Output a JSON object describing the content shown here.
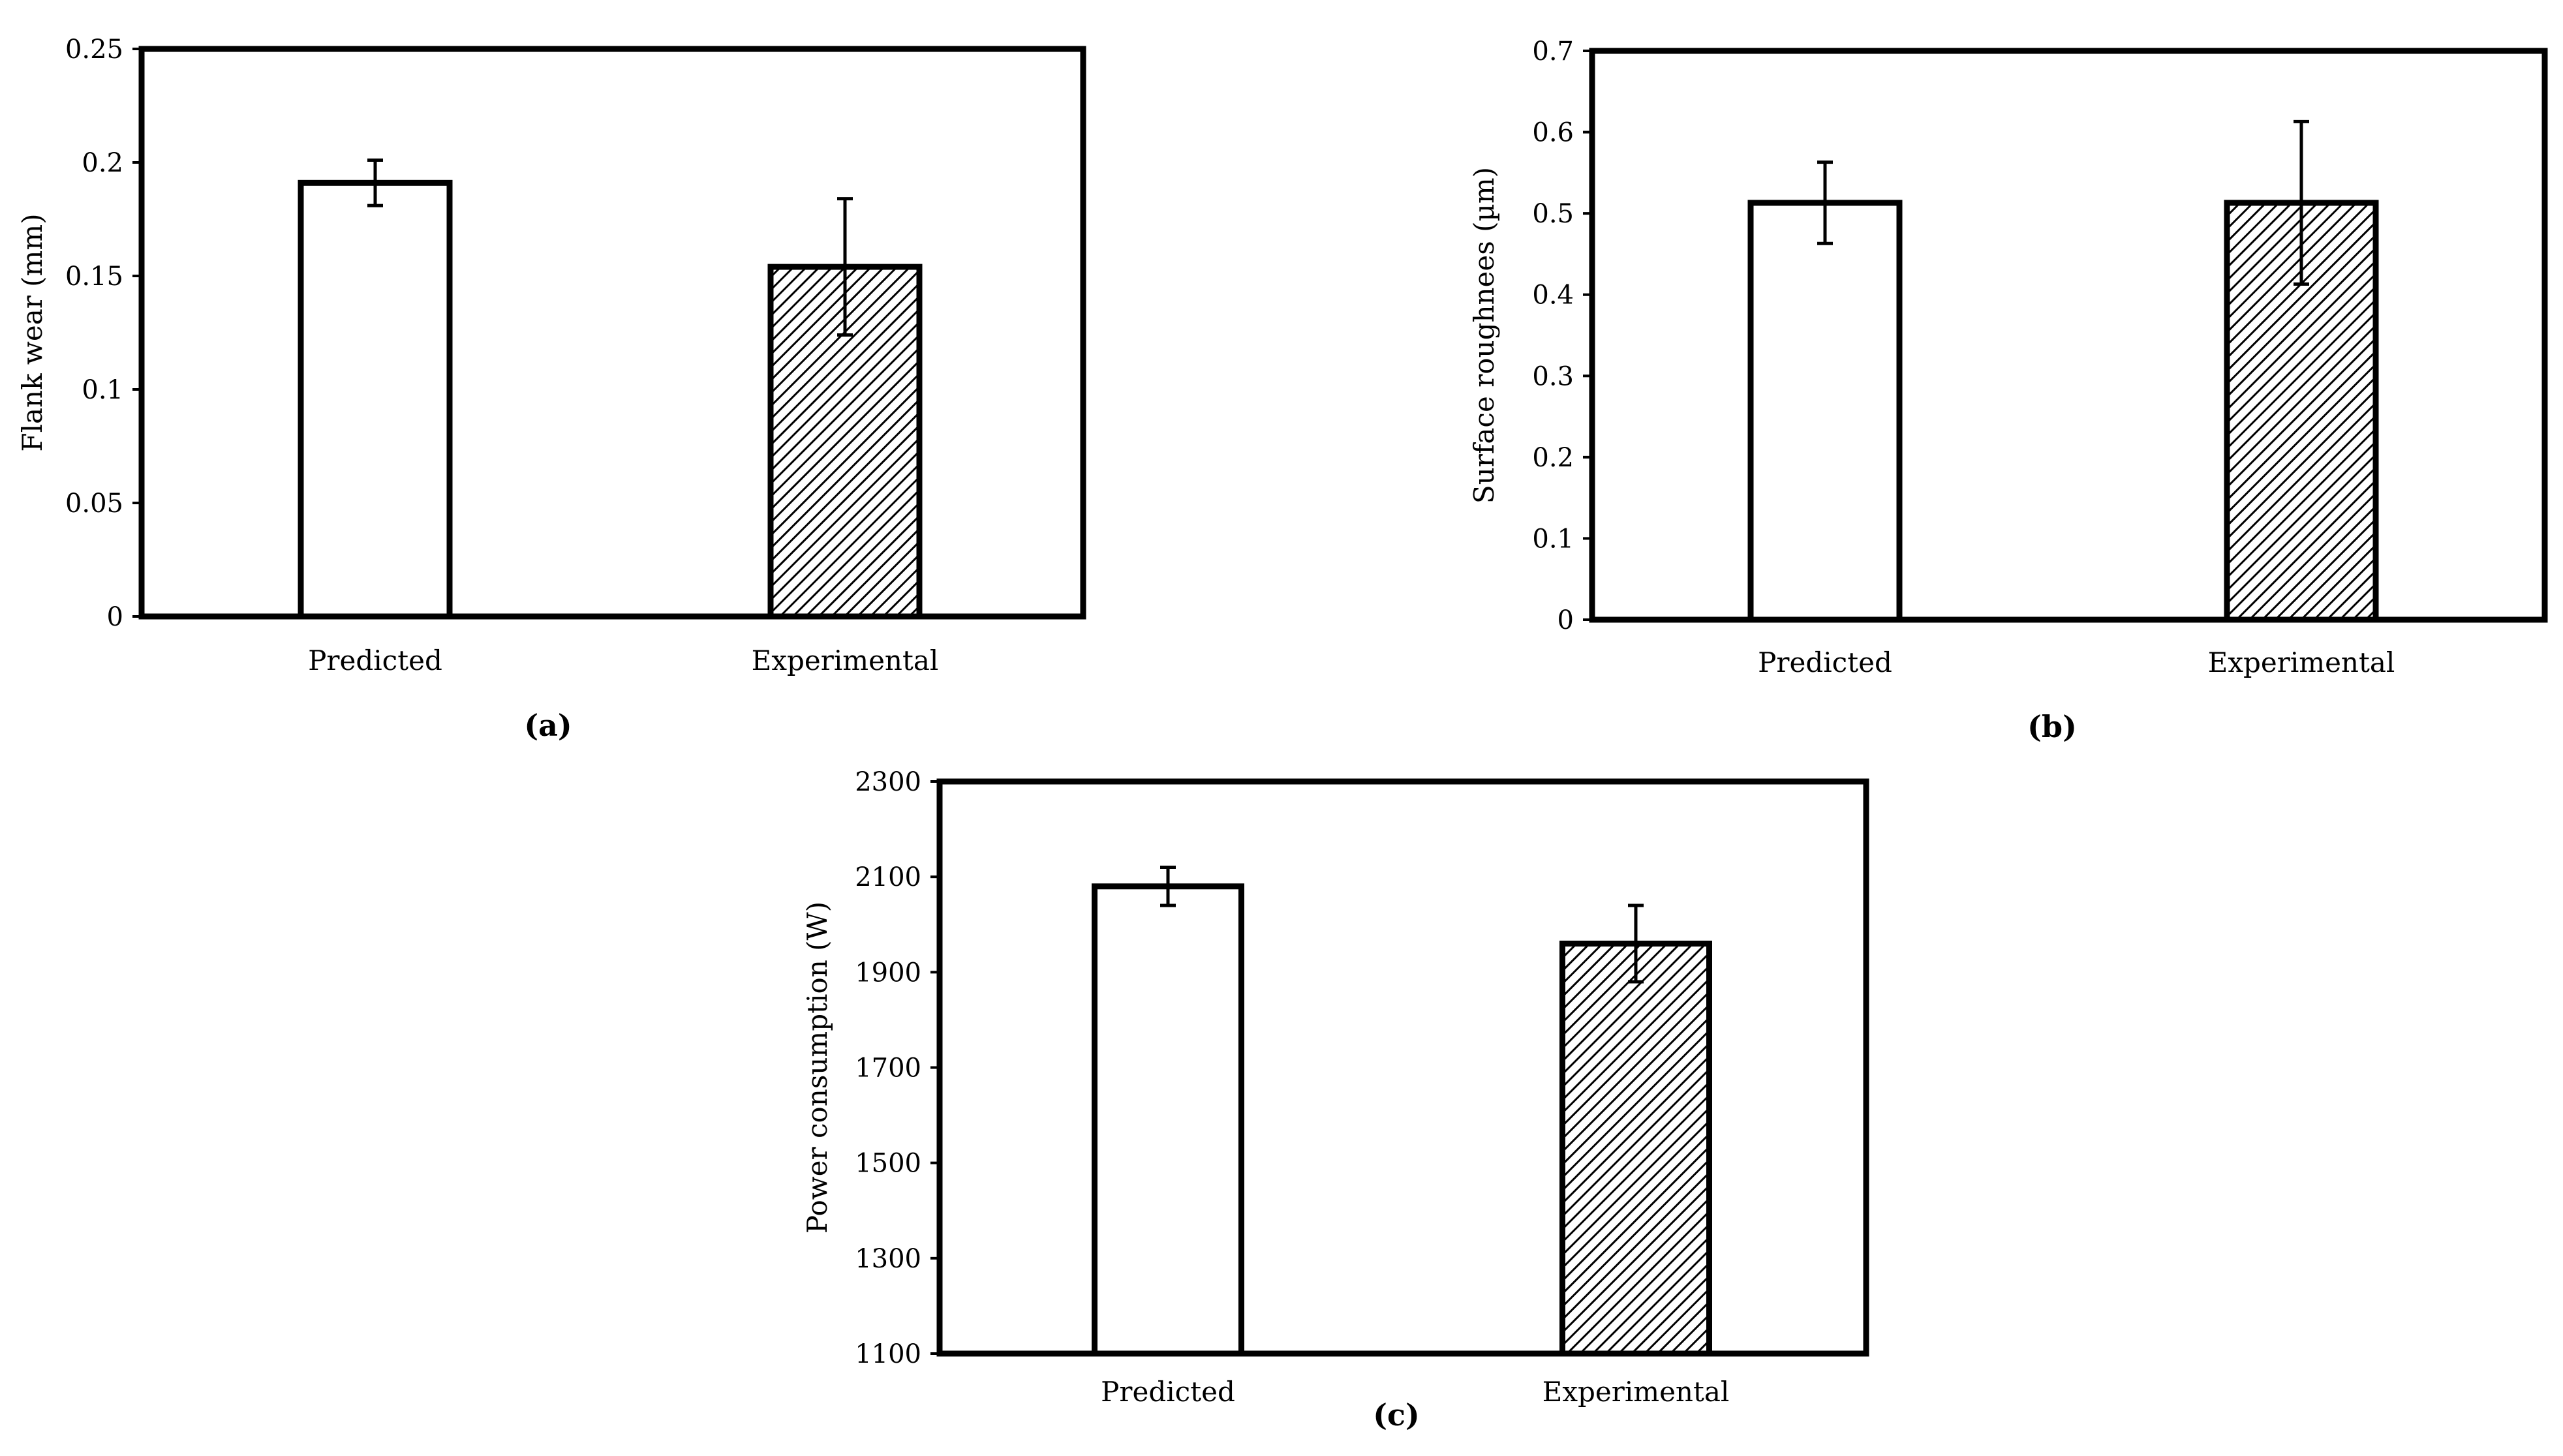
{
  "chart_data": [
    {
      "type": "bar",
      "categories": [
        "Predicted",
        "Experimental"
      ],
      "values": [
        0.191,
        0.154
      ],
      "errors": [
        0.01,
        0.03
      ],
      "ylabel": "Flank wear (mm)",
      "xlabel": "",
      "ylim": [
        0,
        0.25
      ],
      "yticks": [
        "0",
        "0.05",
        "0.1",
        "0.15",
        "0.2",
        "0.25"
      ],
      "ytick_values": [
        0,
        0.05,
        0.1,
        0.15,
        0.2,
        0.25
      ],
      "fills": [
        "plain",
        "hatched"
      ],
      "caption": "(a)"
    },
    {
      "type": "bar",
      "categories": [
        "Predicted",
        "Experimental"
      ],
      "values": [
        0.513,
        0.513
      ],
      "errors": [
        0.05,
        0.1
      ],
      "ylabel": "Surface roughnees (µm)",
      "xlabel": "",
      "ylim": [
        0,
        0.7
      ],
      "yticks": [
        "0",
        "0.1",
        "0.2",
        "0.3",
        "0.4",
        "0.5",
        "0.6",
        "0.7"
      ],
      "ytick_values": [
        0,
        0.1,
        0.2,
        0.3,
        0.4,
        0.5,
        0.6,
        0.7
      ],
      "fills": [
        "plain",
        "hatched"
      ],
      "caption": "(b)"
    },
    {
      "type": "bar",
      "categories": [
        "Predicted",
        "Experimental"
      ],
      "values": [
        2080,
        1960
      ],
      "errors": [
        40,
        80
      ],
      "ylabel": "Power consumption (W)",
      "xlabel": "",
      "ylim": [
        1100,
        2300
      ],
      "yticks": [
        "1100",
        "1300",
        "1500",
        "1700",
        "1900",
        "2100",
        "2300"
      ],
      "ytick_values": [
        1100,
        1300,
        1500,
        1700,
        1900,
        2100,
        2300
      ],
      "fills": [
        "plain",
        "hatched"
      ],
      "caption": "(c)"
    }
  ],
  "colors": {
    "ink": "#000000",
    "background": "#ffffff"
  }
}
